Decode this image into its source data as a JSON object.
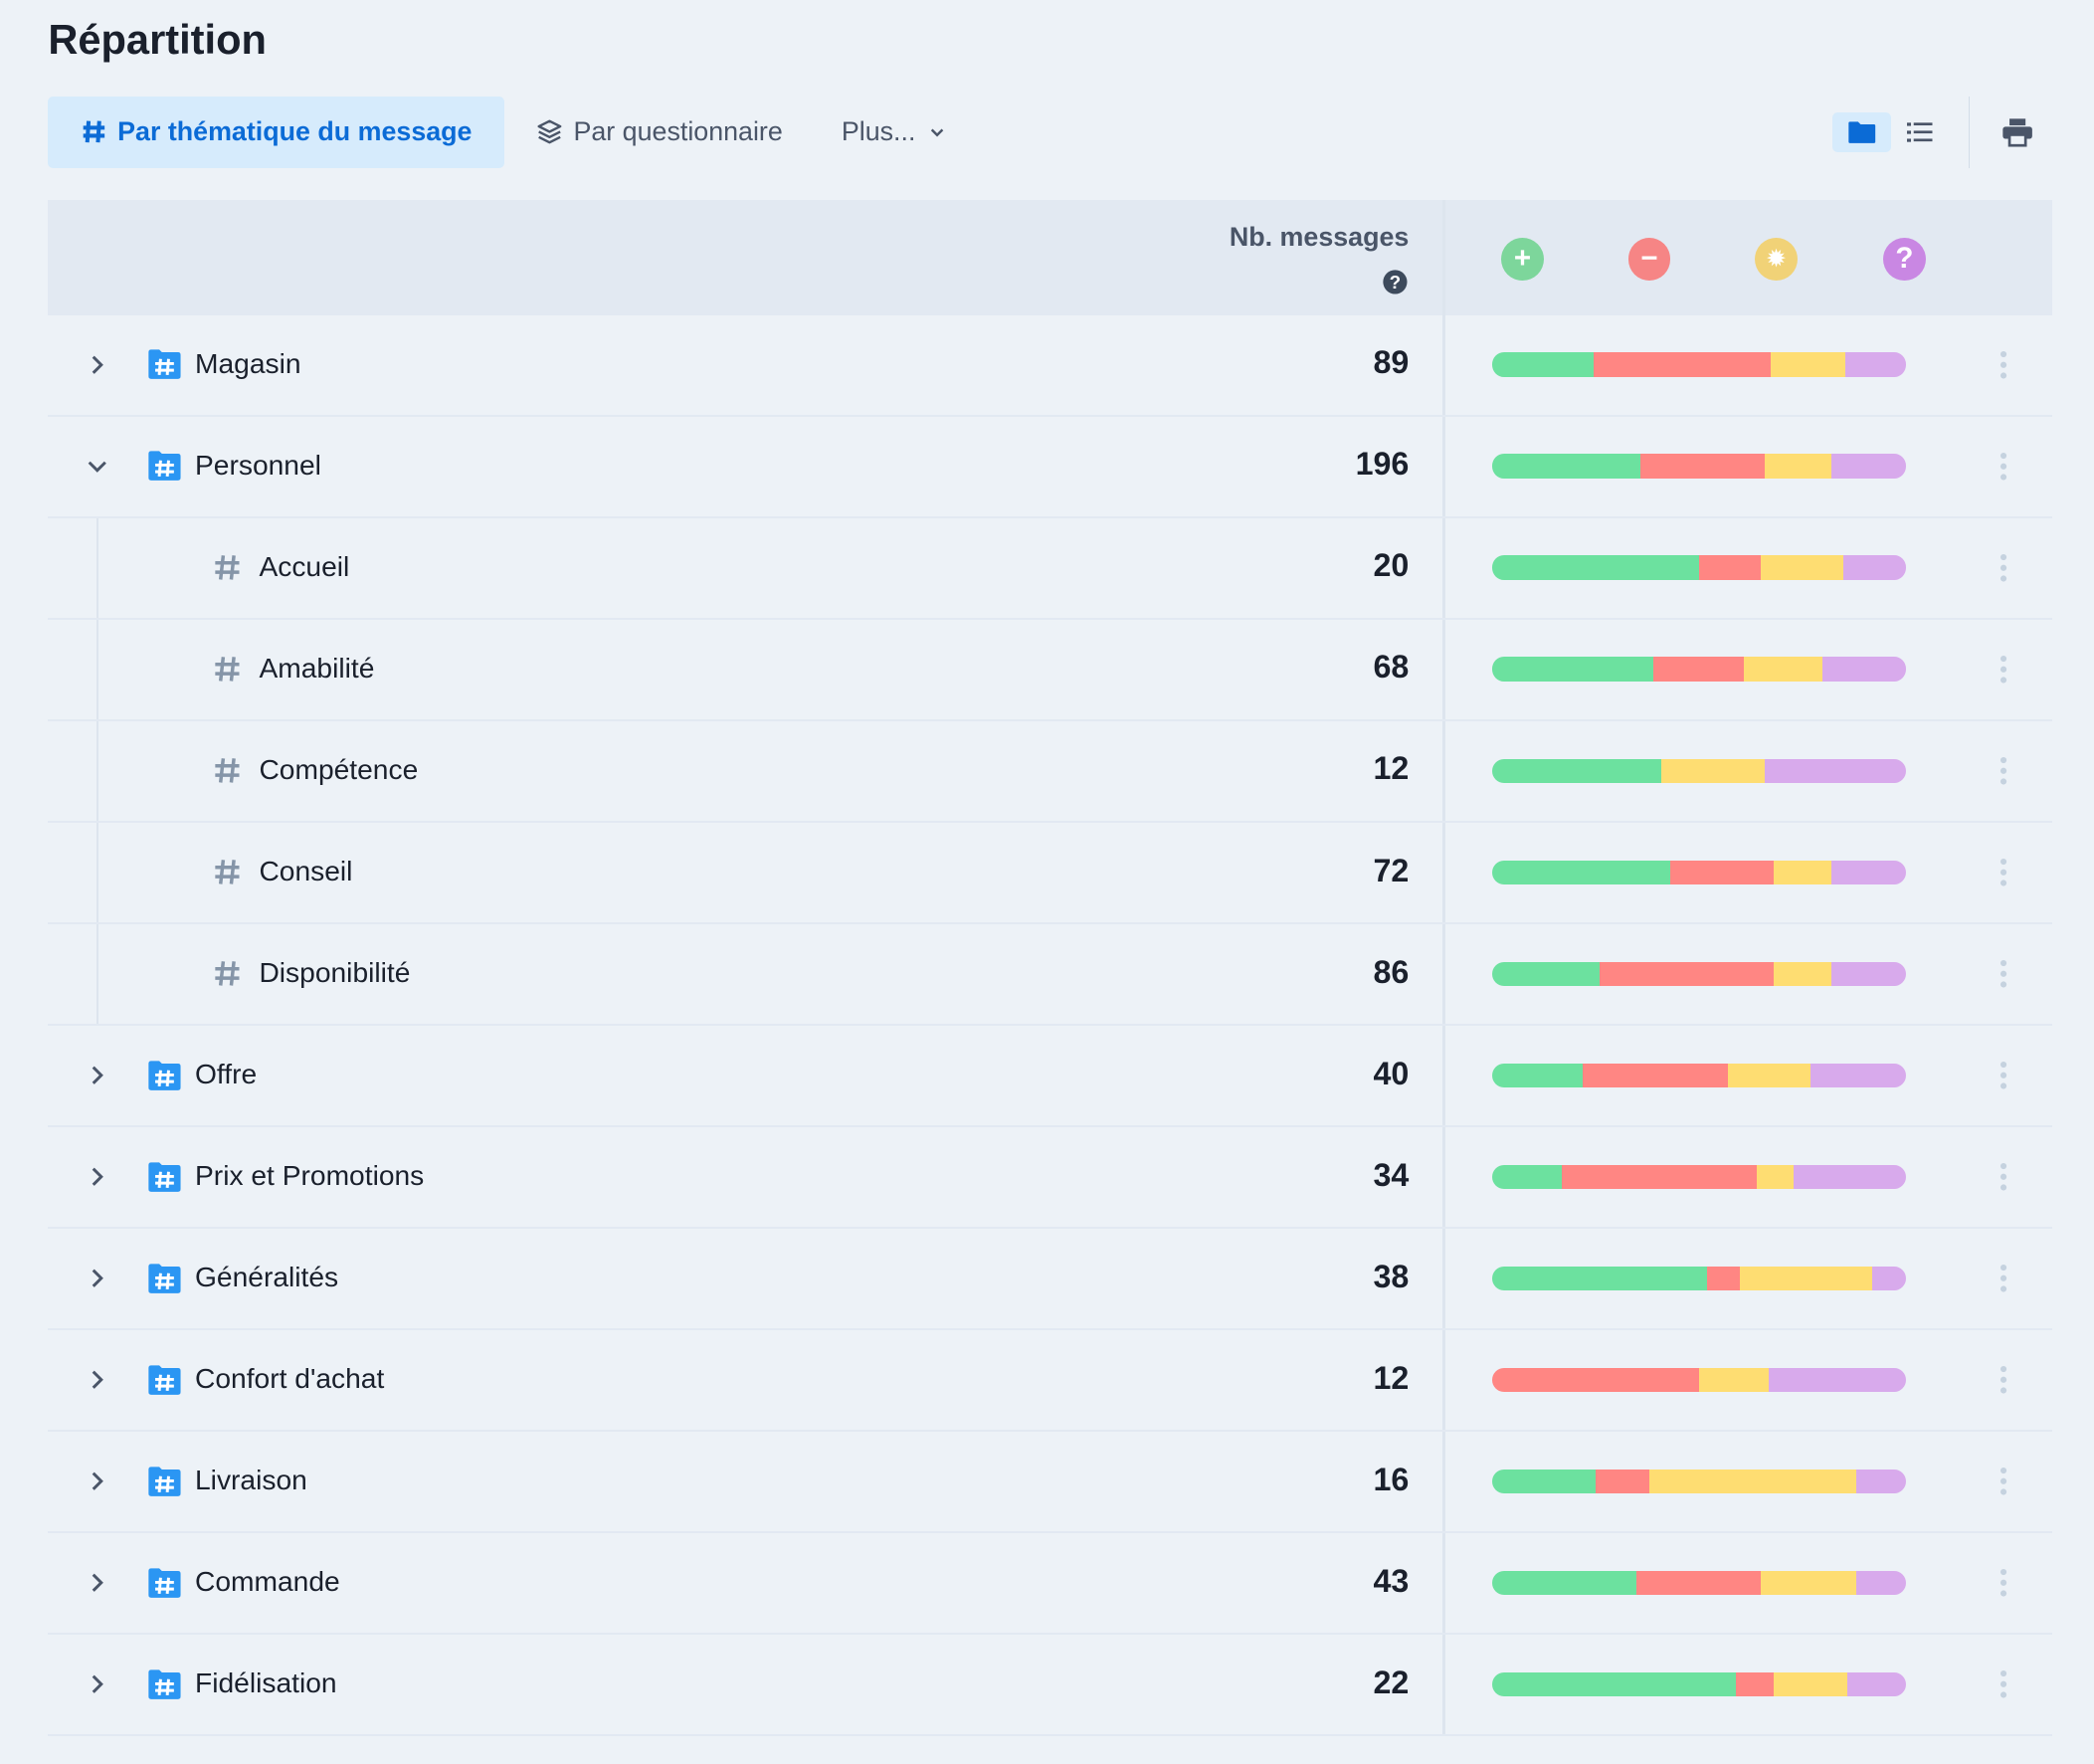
{
  "title": "Répartition",
  "tabs": [
    {
      "label": "Par thématique du message",
      "icon": "hash-icon",
      "active": true
    },
    {
      "label": "Par questionnaire",
      "icon": "layers-icon",
      "active": false
    },
    {
      "label": "Plus...",
      "icon": "chevron-down-icon",
      "active": false
    }
  ],
  "toolbar": {
    "folder_view": "folder-icon",
    "list_view": "list-icon",
    "print": "print-icon"
  },
  "header": {
    "count_label": "Nb. messages",
    "help": "question-circle-icon",
    "sentiments": [
      {
        "name": "positive",
        "icon": "plus-icon",
        "color": "#7dd69b"
      },
      {
        "name": "negative",
        "icon": "minus-icon",
        "color": "#f68585"
      },
      {
        "name": "suggestion",
        "icon": "lightbulb-icon",
        "color": "#f1d277"
      },
      {
        "name": "question",
        "icon": "question-icon",
        "color": "#c987e3"
      }
    ]
  },
  "bar_colors": [
    "#6ce19f",
    "#ff8683",
    "#fedd72",
    "#d8aaec"
  ],
  "rows": [
    {
      "name": "Magasin",
      "count": "89",
      "level": 0,
      "expanded": false,
      "split": [
        24.5,
        43,
        18,
        14.5
      ]
    },
    {
      "name": "Personnel",
      "count": "196",
      "level": 0,
      "expanded": true,
      "split": [
        36,
        30,
        16,
        18
      ]
    },
    {
      "name": "Accueil",
      "count": "20",
      "level": 1,
      "split": [
        50,
        15,
        20,
        15
      ]
    },
    {
      "name": "Amabilité",
      "count": "68",
      "level": 1,
      "split": [
        39,
        22,
        19,
        20
      ]
    },
    {
      "name": "Compétence",
      "count": "12",
      "level": 1,
      "split": [
        41,
        0,
        25,
        34
      ]
    },
    {
      "name": "Conseil",
      "count": "72",
      "level": 1,
      "split": [
        43,
        25,
        14,
        18
      ]
    },
    {
      "name": "Disponibilité",
      "count": "86",
      "level": 1,
      "split": [
        26,
        42,
        14,
        18
      ]
    },
    {
      "name": "Offre",
      "count": "40",
      "level": 0,
      "expanded": false,
      "split": [
        22,
        35,
        20,
        23
      ]
    },
    {
      "name": "Prix et Promotions",
      "count": "34",
      "level": 0,
      "expanded": false,
      "split": [
        17,
        47,
        9,
        27
      ]
    },
    {
      "name": "Généralités",
      "count": "38",
      "level": 0,
      "expanded": false,
      "split": [
        52,
        8,
        32,
        8
      ]
    },
    {
      "name": "Confort d'achat",
      "count": "12",
      "level": 0,
      "expanded": false,
      "split": [
        0,
        50,
        17,
        33
      ]
    },
    {
      "name": "Livraison",
      "count": "16",
      "level": 0,
      "expanded": false,
      "split": [
        25,
        13,
        50,
        12
      ]
    },
    {
      "name": "Commande",
      "count": "43",
      "level": 0,
      "expanded": false,
      "split": [
        35,
        30,
        23,
        12
      ]
    },
    {
      "name": "Fidélisation",
      "count": "22",
      "level": 0,
      "expanded": false,
      "split": [
        59,
        9,
        18,
        14
      ]
    }
  ]
}
